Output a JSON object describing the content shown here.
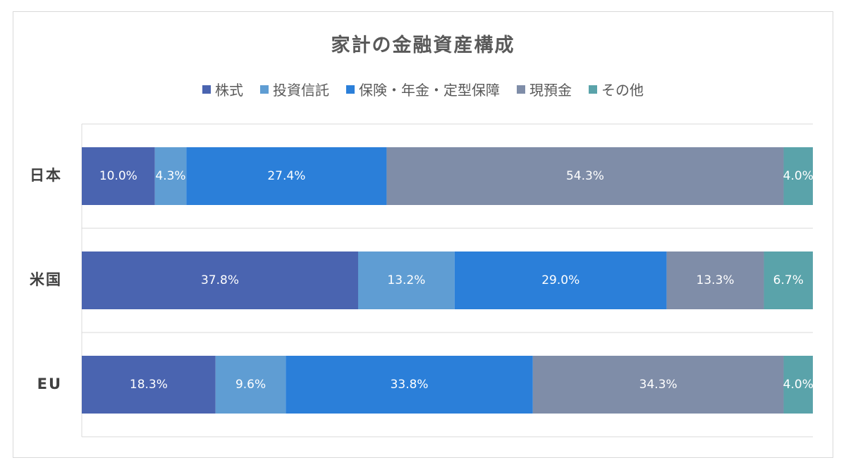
{
  "chart_data": {
    "type": "bar",
    "orientation": "horizontal",
    "stacked": true,
    "title": "家計の金融資産構成",
    "legend_position": "top",
    "categories": [
      "日本",
      "米国",
      "EU"
    ],
    "xlim": [
      0,
      100
    ],
    "grid": true,
    "series": [
      {
        "name": "株式",
        "color": "#4a64b0",
        "values": [
          10.0,
          37.8,
          18.3
        ],
        "labels": [
          "10.0%",
          "37.8%",
          "18.3%"
        ]
      },
      {
        "name": "投資信託",
        "color": "#5f9dd3",
        "values": [
          4.3,
          13.2,
          9.6
        ],
        "labels": [
          "4.3%",
          "13.2%",
          "9.6%"
        ]
      },
      {
        "name": "保険・年金・定型保障",
        "color": "#2b7fd9",
        "values": [
          27.4,
          29.0,
          33.8
        ],
        "labels": [
          "27.4%",
          "29.0%",
          "33.8%"
        ]
      },
      {
        "name": "現預金",
        "color": "#7f8da8",
        "values": [
          54.3,
          13.3,
          34.3
        ],
        "labels": [
          "54.3%",
          "13.3%",
          "34.3%"
        ]
      },
      {
        "name": "その他",
        "color": "#5aa3aa",
        "values": [
          4.0,
          6.7,
          4.0
        ],
        "labels": [
          "4.0%",
          "6.7%",
          "4.0%"
        ]
      }
    ]
  }
}
